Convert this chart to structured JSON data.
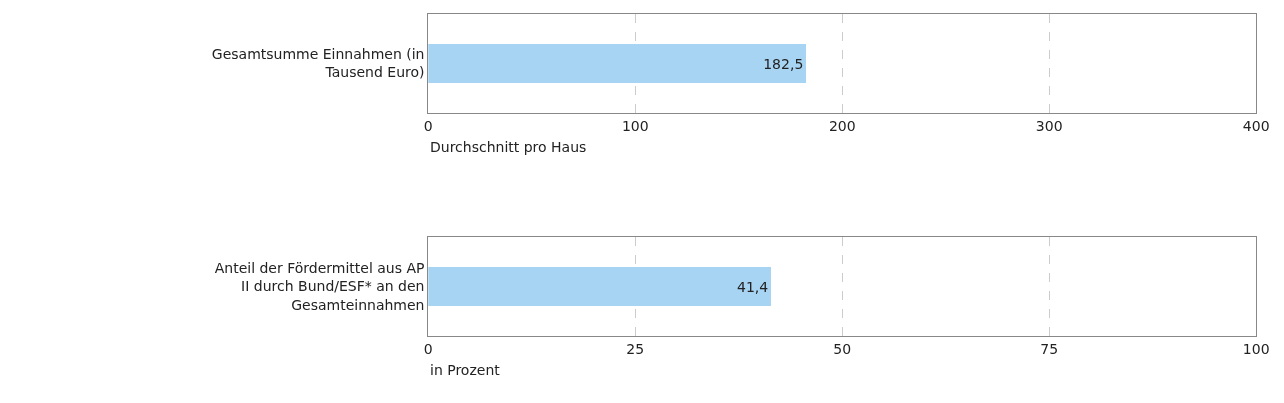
{
  "chart_data": [
    {
      "type": "bar",
      "orientation": "horizontal",
      "categories": [
        "Gesamtsumme Einnahmen (in Tausend Euro)"
      ],
      "values": [
        182.5
      ],
      "value_labels": [
        "182,5"
      ],
      "color": "#a8d4f4",
      "xlabel": "Durchschnitt pro Haus",
      "xlim": [
        0,
        400
      ],
      "xticks": [
        0,
        100,
        200,
        300,
        400
      ],
      "grid": "x"
    },
    {
      "type": "bar",
      "orientation": "horizontal",
      "categories": [
        "Anteil der Fördermittel aus AP II durch Bund/ESF* an den Gesamteinnahmen"
      ],
      "values": [
        41.4
      ],
      "value_labels": [
        "41,4"
      ],
      "color": "#a8d4f4",
      "xlabel": "in Prozent",
      "xlim": [
        0,
        100
      ],
      "xticks": [
        0,
        25,
        50,
        75,
        100
      ],
      "grid": "x"
    }
  ]
}
